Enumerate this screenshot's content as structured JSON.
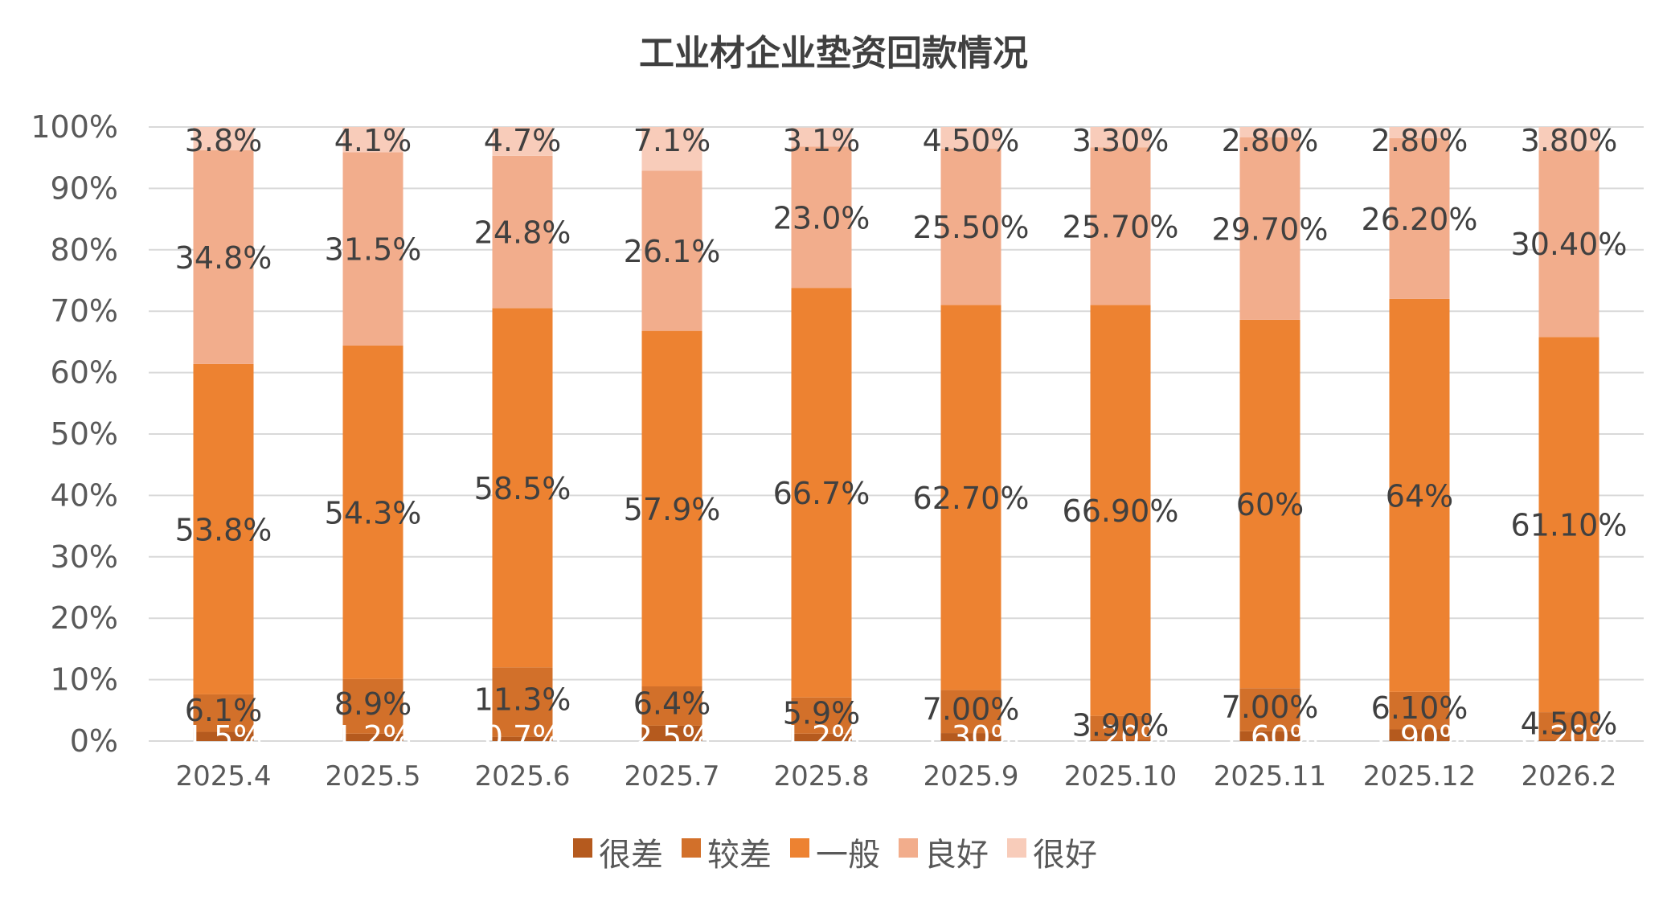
{
  "chart_data": {
    "type": "bar",
    "stacked": true,
    "title": "工业材企业垫资回款情况",
    "categories": [
      "2025.4",
      "2025.5",
      "2025.6",
      "2025.7",
      "2025.8",
      "2025.9",
      "2025.10",
      "2025.11",
      "2025.12",
      "2026.2"
    ],
    "y_ticks": [
      "0%",
      "10%",
      "20%",
      "30%",
      "40%",
      "50%",
      "60%",
      "70%",
      "80%",
      "90%",
      "100%"
    ],
    "ylim": [
      0,
      100
    ],
    "grid": true,
    "legend_position": "bottom",
    "series": [
      {
        "name": "很差",
        "color": "#B55A1E",
        "values": [
          1.5,
          1.2,
          0.7,
          2.5,
          1.2,
          1.3,
          0.2,
          1.6,
          1.9,
          0.2
        ],
        "labels": [
          "1.5%",
          "1.2%",
          "0.7%",
          "2.5%",
          "1.2%",
          "1.30%",
          "0.20%",
          "1.60%",
          "1.90%",
          "0.20%"
        ]
      },
      {
        "name": "较差",
        "color": "#D2702A",
        "values": [
          6.1,
          8.9,
          11.3,
          6.4,
          5.9,
          7.0,
          3.9,
          7.0,
          6.1,
          4.5
        ],
        "labels": [
          "6.1%",
          "8.9%",
          "11.3%",
          "6.4%",
          "5.9%",
          "7.00%",
          "3.90%",
          "7.00%",
          "6.10%",
          "4.50%"
        ]
      },
      {
        "name": "一般",
        "color": "#ED8231",
        "values": [
          53.8,
          54.3,
          58.5,
          57.9,
          66.7,
          62.7,
          66.9,
          60,
          64,
          61.1
        ],
        "labels": [
          "53.8%",
          "54.3%",
          "58.5%",
          "57.9%",
          "66.7%",
          "62.70%",
          "66.90%",
          "60%",
          "64%",
          "61.10%"
        ]
      },
      {
        "name": "良好",
        "color": "#F2AD8C",
        "values": [
          34.8,
          31.5,
          24.8,
          26.1,
          23.0,
          25.5,
          25.7,
          29.7,
          26.2,
          30.4
        ],
        "labels": [
          "34.8%",
          "31.5%",
          "24.8%",
          "26.1%",
          "23.0%",
          "25.50%",
          "25.70%",
          "29.70%",
          "26.20%",
          "30.40%"
        ]
      },
      {
        "name": "很好",
        "color": "#F8CCBA",
        "values": [
          3.8,
          4.1,
          4.7,
          7.1,
          3.1,
          4.5,
          3.3,
          2.8,
          2.8,
          3.8
        ],
        "labels": [
          "3.8%",
          "4.1%",
          "4.7%",
          "7.1%",
          "3.1%",
          "4.50%",
          "3.30%",
          "2.80%",
          "2.80%",
          "3.80%"
        ]
      }
    ]
  }
}
